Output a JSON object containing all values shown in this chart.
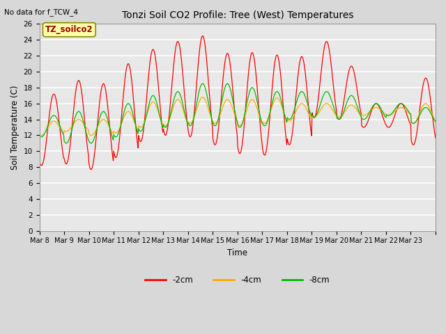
{
  "title": "Tonzi Soil CO2 Profile: Tree (West) Temperatures",
  "subtitle": "No data for f_TCW_4",
  "ylabel": "Soil Temperature (C)",
  "xlabel": "Time",
  "legend_label": "TZ_soilco2",
  "ylim": [
    0,
    26
  ],
  "yticks": [
    0,
    2,
    4,
    6,
    8,
    10,
    12,
    14,
    16,
    18,
    20,
    22,
    24,
    26
  ],
  "xtick_labels": [
    "Mar 8",
    "Mar 9",
    "Mar 10",
    "Mar 11",
    "Mar 12",
    "Mar 13",
    "Mar 14",
    "Mar 15",
    "Mar 16",
    "Mar 17",
    "Mar 18",
    "Mar 19",
    "Mar 20",
    "Mar 21",
    "Mar 22",
    "Mar 23"
  ],
  "series": {
    "neg2cm": {
      "color": "#ff0000",
      "label": "-2cm",
      "peaks": [
        17.2,
        18.9,
        18.5,
        21.0,
        22.8,
        23.8,
        24.5,
        22.3,
        22.4,
        22.1,
        21.9,
        23.8,
        20.7,
        16.0,
        16.0,
        19.2
      ],
      "troughs": [
        8.2,
        8.4,
        7.7,
        9.2,
        11.2,
        12.0,
        11.8,
        10.8,
        9.7,
        9.5,
        10.8,
        14.2,
        14.0,
        13.0,
        13.0,
        10.8
      ]
    },
    "neg4cm": {
      "color": "#ffaa00",
      "label": "-4cm",
      "peaks": [
        13.8,
        14.0,
        14.0,
        15.0,
        16.2,
        16.5,
        16.8,
        16.5,
        16.5,
        16.7,
        16.0,
        16.0,
        15.8,
        15.5,
        15.5,
        16.0
      ],
      "troughs": [
        12.0,
        12.5,
        12.0,
        12.3,
        13.0,
        13.2,
        13.5,
        13.5,
        13.2,
        13.5,
        13.8,
        14.3,
        14.3,
        14.5,
        14.5,
        13.5
      ]
    },
    "neg8cm": {
      "color": "#00bb00",
      "label": "-8cm",
      "peaks": [
        14.5,
        15.0,
        15.0,
        16.0,
        17.0,
        17.5,
        18.5,
        18.5,
        18.0,
        17.5,
        17.5,
        17.5,
        17.0,
        16.0,
        16.0,
        15.5
      ],
      "troughs": [
        11.8,
        11.0,
        11.0,
        11.8,
        12.5,
        13.0,
        13.2,
        13.2,
        13.0,
        13.2,
        14.0,
        14.3,
        14.0,
        14.0,
        14.5,
        13.5
      ]
    }
  },
  "bg_color": "#d8d8d8",
  "plot_bg_color": "#e8e8e8",
  "grid_color": "#ffffff",
  "n_per_day": 48,
  "peak_hour": 14,
  "trough_hour": 4
}
